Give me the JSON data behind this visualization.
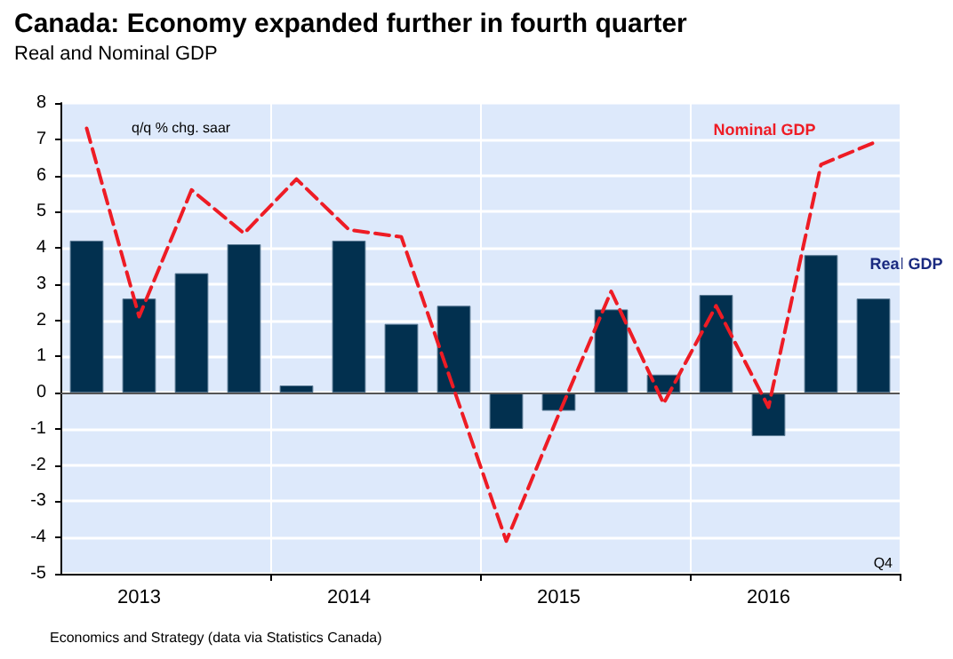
{
  "chart_data": {
    "type": "bar",
    "title": "Canada: Economy expanded further in fourth quarter",
    "subtitle": "Real and Nominal GDP",
    "ylabel": "q/q % chg. saar",
    "categories": [
      null,
      "2013",
      null,
      null,
      null,
      "2014",
      null,
      null,
      null,
      "2015",
      null,
      null,
      null,
      "2016",
      null,
      null
    ],
    "series": [
      {
        "name": "Real GDP",
        "color": "#02304f",
        "values": [
          4.2,
          2.6,
          3.3,
          4.1,
          0.2,
          4.2,
          1.9,
          2.4,
          -1.0,
          -0.5,
          2.3,
          0.5,
          2.7,
          -1.2,
          3.8,
          2.6
        ]
      },
      {
        "name": "Nominal GDP",
        "type": "line",
        "color": "#ee1c25",
        "line_style": "dashed",
        "values": [
          7.3,
          2.1,
          5.6,
          4.4,
          5.9,
          4.5,
          4.3,
          0.1,
          -4.1,
          -0.6,
          2.8,
          -0.3,
          2.4,
          -0.4,
          6.3,
          6.9
        ]
      }
    ],
    "ylim": [
      -5,
      8
    ],
    "yticks": [
      -5,
      -4,
      -3,
      -2,
      -1,
      0,
      1,
      2,
      3,
      4,
      5,
      6,
      7,
      8
    ],
    "grid": true,
    "legend": false,
    "marker": "none",
    "annotations": [
      "Q4",
      "Economics and Strategy (data via Statistics Canada)"
    ]
  }
}
